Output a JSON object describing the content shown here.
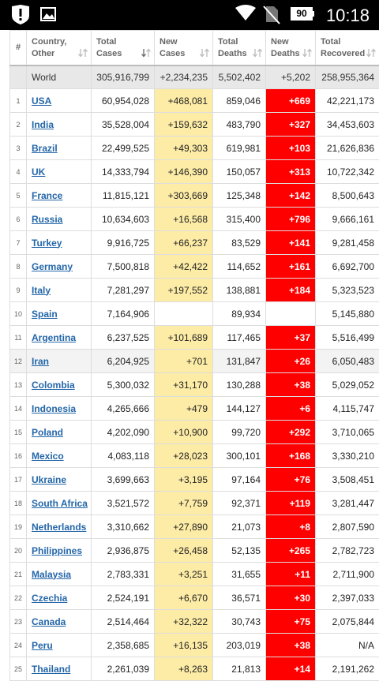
{
  "status_bar": {
    "battery": "90",
    "time": "10:18"
  },
  "table": {
    "headers": [
      "#",
      "Country, Other",
      "Total Cases",
      "New Cases",
      "Total Deaths",
      "New Deaths",
      "Total Recovered"
    ],
    "world": [
      "World",
      "305,916,799",
      "+2,234,235",
      "5,502,402",
      "+5,202",
      "258,955,364"
    ],
    "rows": [
      [
        1,
        "USA",
        "60,954,028",
        "+468,081",
        "859,046",
        "+669",
        "42,221,173"
      ],
      [
        2,
        "India",
        "35,528,004",
        "+159,632",
        "483,790",
        "+327",
        "34,453,603"
      ],
      [
        3,
        "Brazil",
        "22,499,525",
        "+49,303",
        "619,981",
        "+103",
        "21,626,836"
      ],
      [
        4,
        "UK",
        "14,333,794",
        "+146,390",
        "150,057",
        "+313",
        "10,722,342"
      ],
      [
        5,
        "France",
        "11,815,121",
        "+303,669",
        "125,348",
        "+142",
        "8,500,643"
      ],
      [
        6,
        "Russia",
        "10,634,603",
        "+16,568",
        "315,400",
        "+796",
        "9,666,161"
      ],
      [
        7,
        "Turkey",
        "9,916,725",
        "+66,237",
        "83,529",
        "+141",
        "9,281,458"
      ],
      [
        8,
        "Germany",
        "7,500,818",
        "+42,422",
        "114,652",
        "+161",
        "6,692,700"
      ],
      [
        9,
        "Italy",
        "7,281,297",
        "+197,552",
        "138,881",
        "+184",
        "5,323,523"
      ],
      [
        10,
        "Spain",
        "7,164,906",
        null,
        "89,934",
        null,
        "5,145,880"
      ],
      [
        11,
        "Argentina",
        "6,237,525",
        "+101,689",
        "117,465",
        "+37",
        "5,516,499"
      ],
      [
        12,
        "Iran",
        "6,204,925",
        "+701",
        "131,847",
        "+26",
        "6,050,483"
      ],
      [
        13,
        "Colombia",
        "5,300,032",
        "+31,170",
        "130,288",
        "+38",
        "5,029,052"
      ],
      [
        14,
        "Indonesia",
        "4,265,666",
        "+479",
        "144,127",
        "+6",
        "4,115,747"
      ],
      [
        15,
        "Poland",
        "4,202,090",
        "+10,900",
        "99,720",
        "+292",
        "3,710,065"
      ],
      [
        16,
        "Mexico",
        "4,083,118",
        "+28,023",
        "300,101",
        "+168",
        "3,330,210"
      ],
      [
        17,
        "Ukraine",
        "3,699,663",
        "+3,195",
        "97,164",
        "+76",
        "3,508,451"
      ],
      [
        18,
        "South Africa",
        "3,521,572",
        "+7,759",
        "92,371",
        "+119",
        "3,281,447"
      ],
      [
        19,
        "Netherlands",
        "3,310,662",
        "+27,890",
        "21,073",
        "+8",
        "2,807,590"
      ],
      [
        20,
        "Philippines",
        "2,936,875",
        "+26,458",
        "52,135",
        "+265",
        "2,782,723"
      ],
      [
        21,
        "Malaysia",
        "2,783,331",
        "+3,251",
        "31,655",
        "+11",
        "2,711,900"
      ],
      [
        22,
        "Czechia",
        "2,524,191",
        "+6,670",
        "36,571",
        "+30",
        "2,397,033"
      ],
      [
        23,
        "Canada",
        "2,514,464",
        "+32,322",
        "30,743",
        "+75",
        "2,075,844"
      ],
      [
        24,
        "Peru",
        "2,358,685",
        "+16,135",
        "203,019",
        "+38",
        "N/A"
      ],
      [
        25,
        "Thailand",
        "2,261,039",
        "+8,263",
        "21,813",
        "+14",
        "2,191,262"
      ]
    ]
  }
}
